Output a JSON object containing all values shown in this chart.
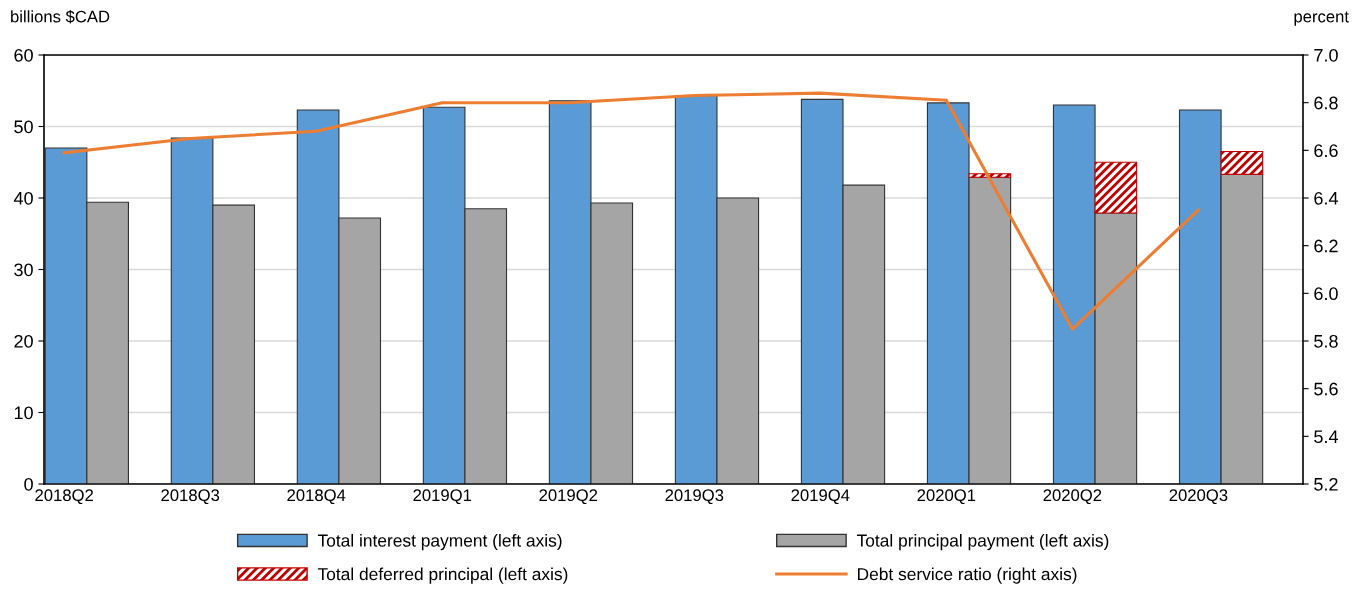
{
  "chart_data": {
    "type": "bar",
    "ylabel": "billions $CAD",
    "y2label": "percent",
    "categories": [
      "2018Q2",
      "2018Q3",
      "2018Q4",
      "2019Q1",
      "2019Q2",
      "2019Q3",
      "2019Q4",
      "2020Q1",
      "2020Q2",
      "2020Q3"
    ],
    "series": [
      {
        "name": "Total interest payment (left axis)",
        "color": "#5b9bd5",
        "values": [
          47.0,
          48.4,
          52.3,
          52.7,
          53.6,
          54.3,
          53.8,
          53.3,
          53.0,
          52.3
        ]
      },
      {
        "name": "Total principal payment (left axis)",
        "color": "#a5a5a5",
        "values": [
          39.4,
          39.0,
          37.2,
          38.5,
          39.3,
          40.0,
          41.8,
          42.9,
          37.9,
          43.3
        ]
      },
      {
        "name": "Total deferred principal (left axis)",
        "color": "#c00000",
        "base": [
          null,
          null,
          null,
          null,
          null,
          null,
          null,
          42.9,
          37.9,
          43.3
        ],
        "values": [
          null,
          null,
          null,
          null,
          null,
          null,
          null,
          0.5,
          7.1,
          3.2
        ]
      },
      {
        "name": "Debt service ratio (right axis)",
        "color": "#ed7d31",
        "type": "line",
        "axis": "y2",
        "values": [
          6.59,
          6.65,
          6.68,
          6.8,
          6.8,
          6.83,
          6.84,
          6.81,
          5.85,
          6.35
        ]
      }
    ],
    "ylim": [
      0,
      60
    ],
    "yticks": [
      0,
      10,
      20,
      30,
      40,
      50,
      60
    ],
    "y2lim": [
      5.2,
      7.0
    ],
    "y2ticks": [
      {
        "value": 5.2,
        "label": "5.2"
      },
      {
        "value": 5.4,
        "label": "5.4"
      },
      {
        "value": 5.6,
        "label": "5.6"
      },
      {
        "value": 5.8,
        "label": "5.8"
      },
      {
        "value": 6.0,
        "label": "6.0"
      },
      {
        "value": 6.2,
        "label": "6.2"
      },
      {
        "value": 6.4,
        "label": "6.4"
      },
      {
        "value": 6.6,
        "label": "6.6"
      },
      {
        "value": 6.8,
        "label": "6.8"
      },
      {
        "value": 7.0,
        "label": "7.0"
      }
    ],
    "grid": "y",
    "legend": "bottom",
    "marker": "none",
    "line_style": "solid"
  }
}
